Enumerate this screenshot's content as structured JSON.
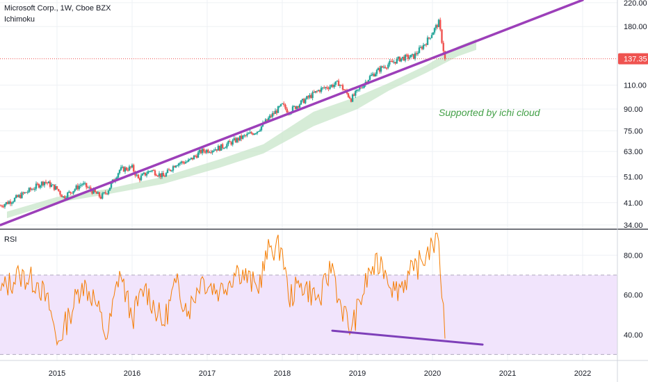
{
  "header": {
    "symbol_line": "Microsoft Corp., 1W, Cboe BZX",
    "indicator": "Ichimoku"
  },
  "rsi_pane": {
    "label": "RSI"
  },
  "annotation": {
    "text": "Supported by ichi cloud"
  },
  "colors": {
    "up": "#26a69a",
    "down": "#ef5350",
    "trendline": "#9c3fb9",
    "cloud": "#c8e6c9",
    "rsi_line": "#f57c00",
    "rsi_band": "#f1e4fc",
    "last_price": "#ef5350",
    "annotation": "#43a047"
  },
  "chart_data": [
    {
      "type": "candlestick",
      "title": "Microsoft Corp., 1W, Cboe BZX",
      "indicator": "Ichimoku",
      "y_scale": "log",
      "ylim": [
        33,
        225
      ],
      "y_ticks": [
        220,
        180,
        137.35,
        110,
        90,
        75,
        63,
        51,
        41,
        34
      ],
      "y_tick_labels": [
        "220.00",
        "180.00",
        "137.35",
        "110.00",
        "90.00",
        "75.00",
        "63.00",
        "51.00",
        "41.00",
        "34.00"
      ],
      "x_tick_labels": [
        "2015",
        "2016",
        "2017",
        "2018",
        "2019",
        "2020",
        "2021",
        "2022"
      ],
      "x_range": [
        "2014-04",
        "2022-06"
      ],
      "last_price": 137.35,
      "close_path": [
        {
          "x": "2014-04",
          "y": 40
        },
        {
          "x": "2014-06",
          "y": 42
        },
        {
          "x": "2014-09",
          "y": 46
        },
        {
          "x": "2014-11",
          "y": 49
        },
        {
          "x": "2015-01",
          "y": 46
        },
        {
          "x": "2015-02",
          "y": 43
        },
        {
          "x": "2015-05",
          "y": 48
        },
        {
          "x": "2015-08",
          "y": 43
        },
        {
          "x": "2015-09",
          "y": 45
        },
        {
          "x": "2015-11",
          "y": 54
        },
        {
          "x": "2016-01",
          "y": 55
        },
        {
          "x": "2016-02",
          "y": 50
        },
        {
          "x": "2016-04",
          "y": 54
        },
        {
          "x": "2016-06",
          "y": 51
        },
        {
          "x": "2016-08",
          "y": 57
        },
        {
          "x": "2016-10",
          "y": 58
        },
        {
          "x": "2016-12",
          "y": 63
        },
        {
          "x": "2017-03",
          "y": 65
        },
        {
          "x": "2017-06",
          "y": 70
        },
        {
          "x": "2017-09",
          "y": 75
        },
        {
          "x": "2017-11",
          "y": 84
        },
        {
          "x": "2018-01",
          "y": 93
        },
        {
          "x": "2018-02",
          "y": 88
        },
        {
          "x": "2018-04",
          "y": 95
        },
        {
          "x": "2018-07",
          "y": 106
        },
        {
          "x": "2018-10",
          "y": 112
        },
        {
          "x": "2018-12",
          "y": 98
        },
        {
          "x": "2019-03",
          "y": 118
        },
        {
          "x": "2019-05",
          "y": 128
        },
        {
          "x": "2019-08",
          "y": 138
        },
        {
          "x": "2019-10",
          "y": 140
        },
        {
          "x": "2019-12",
          "y": 158
        },
        {
          "x": "2020-02",
          "y": 186
        },
        {
          "x": "2020-03",
          "y": 137.35
        }
      ],
      "trendline": [
        {
          "x": "2014-04",
          "y": 34
        },
        {
          "x": "2022-01",
          "y": 225
        }
      ],
      "ichimoku_cloud": [
        {
          "x": "2014-05",
          "upper": 38,
          "lower": 36
        },
        {
          "x": "2015-01",
          "upper": 43,
          "lower": 41
        },
        {
          "x": "2015-09",
          "upper": 46,
          "lower": 44
        },
        {
          "x": "2016-06",
          "upper": 51,
          "lower": 48
        },
        {
          "x": "2017-03",
          "upper": 59,
          "lower": 55
        },
        {
          "x": "2017-10",
          "upper": 67,
          "lower": 62
        },
        {
          "x": "2018-06",
          "upper": 88,
          "lower": 78
        },
        {
          "x": "2019-01",
          "upper": 100,
          "lower": 90
        },
        {
          "x": "2019-06",
          "upper": 112,
          "lower": 105
        },
        {
          "x": "2019-12",
          "upper": 130,
          "lower": 122
        },
        {
          "x": "2020-05",
          "upper": 152,
          "lower": 140
        },
        {
          "x": "2020-08",
          "upper": 162,
          "lower": 148
        }
      ]
    },
    {
      "type": "line",
      "title": "RSI",
      "ylim": [
        27,
        92
      ],
      "y_ticks": [
        80,
        60,
        40
      ],
      "y_tick_labels": [
        "80.00",
        "60.00",
        "40.00"
      ],
      "band": [
        30,
        70
      ],
      "series": [
        {
          "values": [
            {
              "x": "2014-04",
              "y": 62
            },
            {
              "x": "2014-07",
              "y": 70
            },
            {
              "x": "2014-10",
              "y": 66
            },
            {
              "x": "2014-12",
              "y": 52
            },
            {
              "x": "2015-01",
              "y": 35
            },
            {
              "x": "2015-03",
              "y": 50
            },
            {
              "x": "2015-05",
              "y": 66
            },
            {
              "x": "2015-07",
              "y": 58
            },
            {
              "x": "2015-09",
              "y": 38
            },
            {
              "x": "2015-11",
              "y": 72
            },
            {
              "x": "2016-01",
              "y": 48
            },
            {
              "x": "2016-03",
              "y": 64
            },
            {
              "x": "2016-06",
              "y": 45
            },
            {
              "x": "2016-08",
              "y": 66
            },
            {
              "x": "2016-10",
              "y": 52
            },
            {
              "x": "2016-12",
              "y": 68
            },
            {
              "x": "2017-03",
              "y": 62
            },
            {
              "x": "2017-06",
              "y": 73
            },
            {
              "x": "2017-09",
              "y": 63
            },
            {
              "x": "2017-11",
              "y": 84
            },
            {
              "x": "2018-01",
              "y": 83
            },
            {
              "x": "2018-02",
              "y": 58
            },
            {
              "x": "2018-04",
              "y": 66
            },
            {
              "x": "2018-07",
              "y": 57
            },
            {
              "x": "2018-09",
              "y": 76
            },
            {
              "x": "2018-10",
              "y": 58
            },
            {
              "x": "2018-12",
              "y": 42
            },
            {
              "x": "2019-03",
              "y": 72
            },
            {
              "x": "2019-05",
              "y": 76
            },
            {
              "x": "2019-07",
              "y": 62
            },
            {
              "x": "2019-10",
              "y": 72
            },
            {
              "x": "2019-12",
              "y": 80
            },
            {
              "x": "2020-01",
              "y": 86
            },
            {
              "x": "2020-02",
              "y": 87
            },
            {
              "x": "2020-03",
              "y": 38
            }
          ]
        }
      ],
      "trendline": [
        {
          "x": "2018-09",
          "y": 42
        },
        {
          "x": "2020-09",
          "y": 35
        }
      ]
    }
  ]
}
